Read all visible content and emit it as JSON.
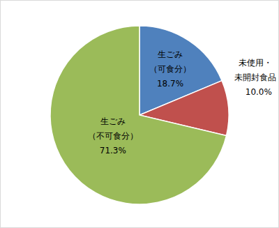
{
  "chart_data": {
    "type": "pie",
    "categories": [
      "生ごみ（可食分）",
      "未使用・未開封食品",
      "生ごみ（不可食分）"
    ],
    "values": [
      18.7,
      10.0,
      71.3
    ],
    "value_labels": [
      "18.7%",
      "10.0%",
      "71.3%"
    ],
    "colors": [
      "#4f81bd",
      "#c0504d",
      "#9bbb59"
    ],
    "data_labels": true
  }
}
